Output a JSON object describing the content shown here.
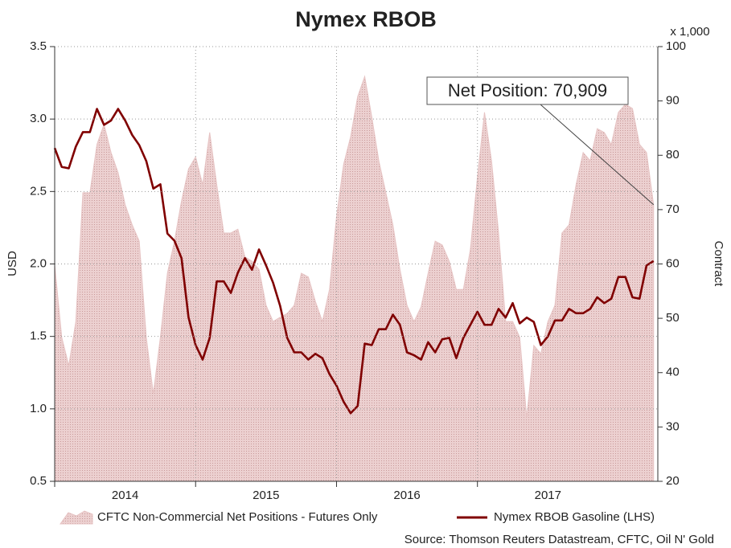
{
  "chart_data": {
    "type": "line",
    "title": "Nymex RBOB",
    "ylabel": "USD",
    "y2label": "Contract",
    "y2unit": "x 1,000",
    "annotation": "Net Position: 70,909",
    "source": "Source: Thomson Reuters Datastream, CFTC, Oil N' Gold",
    "grid": true,
    "legend": "bottom",
    "x": [
      2014.0,
      2014.05,
      2014.1,
      2014.15,
      2014.2,
      2014.25,
      2014.3,
      2014.35,
      2014.4,
      2014.45,
      2014.5,
      2014.55,
      2014.6,
      2014.65,
      2014.7,
      2014.75,
      2014.8,
      2014.85,
      2014.9,
      2014.95,
      2015.0,
      2015.05,
      2015.1,
      2015.15,
      2015.2,
      2015.25,
      2015.3,
      2015.35,
      2015.4,
      2015.45,
      2015.5,
      2015.55,
      2015.6,
      2015.65,
      2015.7,
      2015.75,
      2015.8,
      2015.85,
      2015.9,
      2015.95,
      2016.0,
      2016.05,
      2016.1,
      2016.15,
      2016.2,
      2016.25,
      2016.3,
      2016.35,
      2016.4,
      2016.45,
      2016.5,
      2016.55,
      2016.6,
      2016.65,
      2016.7,
      2016.75,
      2016.8,
      2016.85,
      2016.9,
      2016.95,
      2017.0,
      2017.05,
      2017.1,
      2017.15,
      2017.2,
      2017.25,
      2017.3,
      2017.35,
      2017.4,
      2017.45,
      2017.5,
      2017.55,
      2017.6,
      2017.65,
      2017.7,
      2017.75,
      2017.8,
      2017.85,
      2017.9,
      2017.95,
      2018.0,
      2018.05,
      2018.1,
      2018.15,
      2018.2,
      2018.25
    ],
    "xlim": [
      2014,
      2018.28
    ],
    "xticks": [
      2014,
      2015,
      2016,
      2017
    ],
    "ylim": [
      0.5,
      3.5
    ],
    "yticks": [
      0.5,
      {
        "value": 1,
        "label": "1.0"
      },
      1.5,
      {
        "value": 2,
        "label": "2.0"
      },
      2.5,
      {
        "value": 3,
        "label": "3.0"
      },
      3.5
    ],
    "y2lim": [
      20,
      100
    ],
    "y2ticks": [
      20,
      30,
      40,
      50,
      60,
      70,
      80,
      90,
      100
    ],
    "series": [
      {
        "name": "CFTC Non-Commercial Net Positions - Futures Only",
        "type": "area",
        "axis": "y2",
        "color": "#e6c3c3",
        "values": [
          59.8,
          46.5,
          41.3,
          49.4,
          73.1,
          73.1,
          82.0,
          85.7,
          80.5,
          76.8,
          70.9,
          67.2,
          64.2,
          46.5,
          36.1,
          46.5,
          58.3,
          64.2,
          71.6,
          77.5,
          79.7,
          74.6,
          84.2,
          74.6,
          65.7,
          65.7,
          66.4,
          61.3,
          60.5,
          59.0,
          52.4,
          49.4,
          50.2,
          50.9,
          52.4,
          58.3,
          57.6,
          53.1,
          49.4,
          55.3,
          68.7,
          78.3,
          83.4,
          90.8,
          94.5,
          87.1,
          79.0,
          73.1,
          67.2,
          59.0,
          52.4,
          49.4,
          52.1,
          58.3,
          64.2,
          63.5,
          60.5,
          55.3,
          55.3,
          62.7,
          76.0,
          87.9,
          79.0,
          65.7,
          49.4,
          49.4,
          46.5,
          31.7,
          45.0,
          43.5,
          49.4,
          52.4,
          65.7,
          67.2,
          74.6,
          80.5,
          79.0,
          84.9,
          84.2,
          82.0,
          87.9,
          89.4,
          88.6,
          82.0,
          80.5,
          70.9
        ]
      },
      {
        "name": "Nymex RBOB Gasoline (LHS)",
        "type": "line",
        "color": "#800000",
        "values": [
          2.8,
          2.67,
          2.66,
          2.81,
          2.91,
          2.91,
          3.07,
          2.96,
          2.99,
          3.07,
          2.99,
          2.89,
          2.82,
          2.71,
          2.52,
          2.55,
          2.21,
          2.16,
          2.04,
          1.63,
          1.44,
          1.34,
          1.49,
          1.88,
          1.88,
          1.8,
          1.94,
          2.04,
          1.96,
          2.1,
          1.99,
          1.87,
          1.71,
          1.49,
          1.39,
          1.39,
          1.34,
          1.38,
          1.35,
          1.24,
          1.16,
          1.05,
          0.97,
          1.02,
          1.45,
          1.44,
          1.55,
          1.55,
          1.65,
          1.58,
          1.39,
          1.37,
          1.34,
          1.46,
          1.39,
          1.48,
          1.49,
          1.35,
          1.49,
          1.58,
          1.67,
          1.58,
          1.58,
          1.69,
          1.63,
          1.73,
          1.59,
          1.63,
          1.6,
          1.44,
          1.5,
          1.61,
          1.61,
          1.69,
          1.66,
          1.66,
          1.69,
          1.77,
          1.73,
          1.76,
          1.91,
          1.91,
          1.77,
          1.76,
          1.99,
          2.02
        ]
      }
    ]
  }
}
